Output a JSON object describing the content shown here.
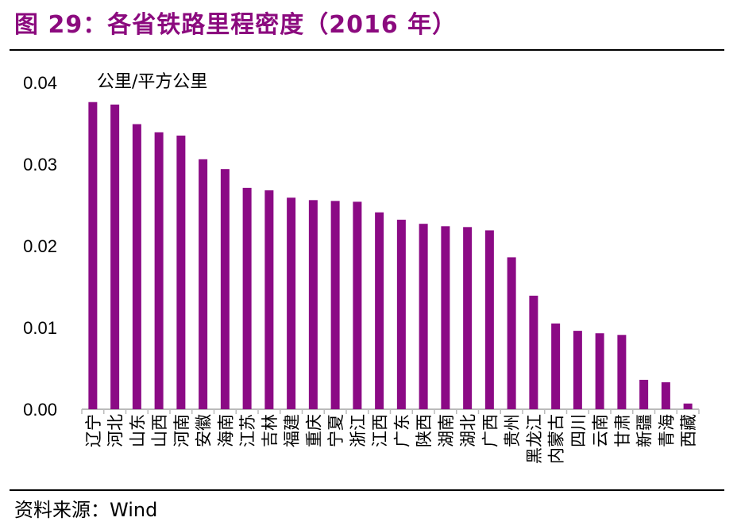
{
  "title": "图 29：各省铁路里程密度（2016 年）",
  "source": "资料来源：Wind",
  "chart_data": {
    "type": "bar",
    "title": "",
    "ylabel": "公里/平方公里",
    "xlabel": "",
    "ylim": [
      0,
      0.04
    ],
    "yticks": [
      "0.00",
      "0.01",
      "0.02",
      "0.03",
      "0.04"
    ],
    "grid": false,
    "color": "#8B0A85",
    "categories": [
      "辽宁",
      "河北",
      "山东",
      "山西",
      "河南",
      "安徽",
      "海南",
      "江苏",
      "吉林",
      "福建",
      "重庆",
      "宁夏",
      "浙江",
      "江西",
      "广东",
      "陕西",
      "湖南",
      "湖北",
      "广西",
      "贵州",
      "黑龙江",
      "内蒙古",
      "四川",
      "云南",
      "甘肃",
      "新疆",
      "青海",
      "西藏"
    ],
    "values": [
      0.0376,
      0.0373,
      0.0349,
      0.0339,
      0.0335,
      0.0306,
      0.0294,
      0.0271,
      0.0268,
      0.0259,
      0.0256,
      0.0255,
      0.0254,
      0.0241,
      0.0232,
      0.0227,
      0.0224,
      0.0223,
      0.0219,
      0.0186,
      0.0139,
      0.0105,
      0.0096,
      0.0093,
      0.0091,
      0.0036,
      0.0033,
      0.0007
    ]
  }
}
